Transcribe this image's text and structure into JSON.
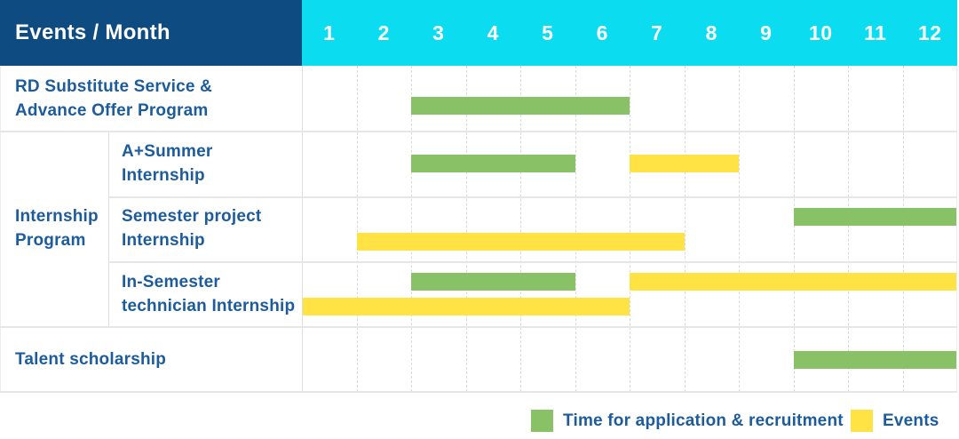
{
  "header": {
    "events_month_label": "Events / Month",
    "months": [
      "1",
      "2",
      "3",
      "4",
      "5",
      "6",
      "7",
      "8",
      "9",
      "10",
      "11",
      "12"
    ]
  },
  "group": {
    "line1": "Internship",
    "line2": "Program"
  },
  "rows": [
    {
      "line1": "RD Substitute Service &",
      "line2": "Advance Offer Program",
      "bars": [
        {
          "series": "recruitment",
          "start_month": 3,
          "end_month": 6,
          "lane": "low"
        }
      ]
    },
    {
      "line1": "A+Summer",
      "line2": "Internship",
      "bars": [
        {
          "series": "recruitment",
          "start_month": 3,
          "end_month": 5,
          "lane": "center"
        },
        {
          "series": "events",
          "start_month": 7,
          "end_month": 8,
          "lane": "center"
        }
      ]
    },
    {
      "line1": "Semester project",
      "line2": "Internship",
      "bars": [
        {
          "series": "recruitment",
          "start_month": 10,
          "end_month": 12,
          "lane": "upper"
        },
        {
          "series": "events",
          "start_month": 2,
          "end_month": 7,
          "lane": "lower"
        }
      ]
    },
    {
      "line1": "In-Semester",
      "line2": "technician Internship",
      "bars": [
        {
          "series": "recruitment",
          "start_month": 3,
          "end_month": 5,
          "lane": "upper"
        },
        {
          "series": "events",
          "start_month": 7,
          "end_month": 12,
          "lane": "upper"
        },
        {
          "series": "events",
          "start_month": 1,
          "end_month": 6,
          "lane": "lower"
        }
      ]
    },
    {
      "line1": "Talent scholarship",
      "line2": "",
      "bars": [
        {
          "series": "recruitment",
          "start_month": 10,
          "end_month": 12,
          "lane": "center"
        }
      ]
    }
  ],
  "legend": {
    "items": [
      {
        "series": "recruitment",
        "label": "Time for application & recruitment"
      },
      {
        "series": "events",
        "label": "Events"
      }
    ]
  },
  "colors": {
    "header_navy": "#0e4b81",
    "months_cyan": "#0bdcf0",
    "recruitment_green": "#89c266",
    "events_yellow": "#ffe345",
    "label_blue": "#1c5c9c"
  },
  "chart_data": {
    "type": "bar",
    "variant": "gantt-schedule",
    "title": "Events / Month",
    "xlabel": "Month",
    "x_ticks": [
      1,
      2,
      3,
      4,
      5,
      6,
      7,
      8,
      9,
      10,
      11,
      12
    ],
    "x_range": [
      1,
      12
    ],
    "grid": true,
    "legend_position": "bottom-right",
    "series_legend": [
      "Time for application & recruitment",
      "Events"
    ],
    "rows": [
      {
        "category": "RD Substitute Service & Advance Offer Program",
        "group": null,
        "bars": [
          {
            "series": "Time for application & recruitment",
            "start_month": 3,
            "end_month": 6
          }
        ]
      },
      {
        "category": "A+Summer Internship",
        "group": "Internship Program",
        "bars": [
          {
            "series": "Time for application & recruitment",
            "start_month": 3,
            "end_month": 5
          },
          {
            "series": "Events",
            "start_month": 7,
            "end_month": 8
          }
        ]
      },
      {
        "category": "Semester project Internship",
        "group": "Internship Program",
        "bars": [
          {
            "series": "Time for application & recruitment",
            "start_month": 10,
            "end_month": 12
          },
          {
            "series": "Events",
            "start_month": 2,
            "end_month": 7
          }
        ]
      },
      {
        "category": "In-Semester technician Internship",
        "group": "Internship Program",
        "bars": [
          {
            "series": "Time for application & recruitment",
            "start_month": 3,
            "end_month": 5
          },
          {
            "series": "Events",
            "start_month": 7,
            "end_month": 12
          },
          {
            "series": "Events",
            "start_month": 1,
            "end_month": 6
          }
        ]
      },
      {
        "category": "Talent scholarship",
        "group": null,
        "bars": [
          {
            "series": "Time for application & recruitment",
            "start_month": 10,
            "end_month": 12
          }
        ]
      }
    ]
  }
}
